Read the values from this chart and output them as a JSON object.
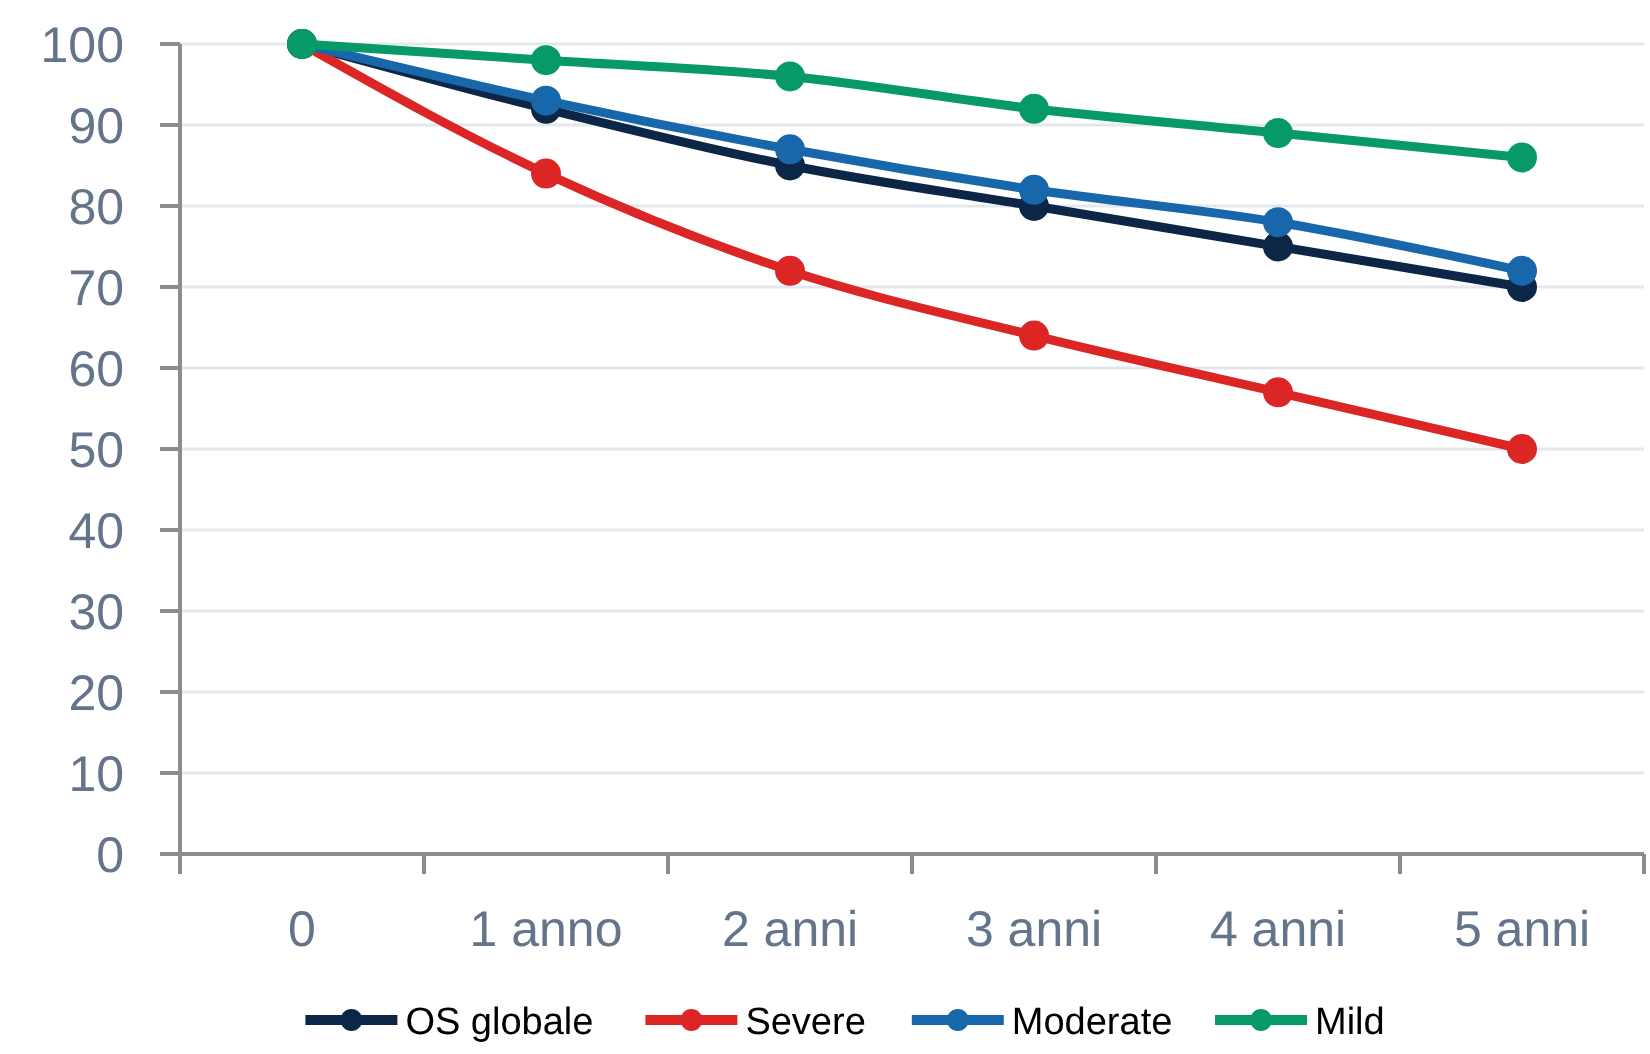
{
  "chart_data": {
    "type": "line",
    "categories": [
      "0",
      "1 anno",
      "2 anni",
      "3 anni",
      "4 anni",
      "5 anni"
    ],
    "series": [
      {
        "name": "OS globale",
        "color": "#0c2647",
        "values": [
          100,
          92,
          85,
          80,
          75,
          70
        ]
      },
      {
        "name": "Severe",
        "color": "#dc2626",
        "values": [
          100,
          84,
          72,
          64,
          57,
          50
        ]
      },
      {
        "name": "Moderate",
        "color": "#1767aa",
        "values": [
          100,
          93,
          87,
          82,
          78,
          72
        ]
      },
      {
        "name": "Mild",
        "color": "#079a68",
        "values": [
          100,
          98,
          96,
          92,
          89,
          86
        ]
      }
    ],
    "ylim": [
      0,
      100
    ],
    "yticks": [
      0,
      10,
      20,
      30,
      40,
      50,
      60,
      70,
      80,
      90,
      100
    ],
    "grid": "y",
    "legend": "bottom",
    "marker": "circle",
    "line_style": "solid"
  }
}
